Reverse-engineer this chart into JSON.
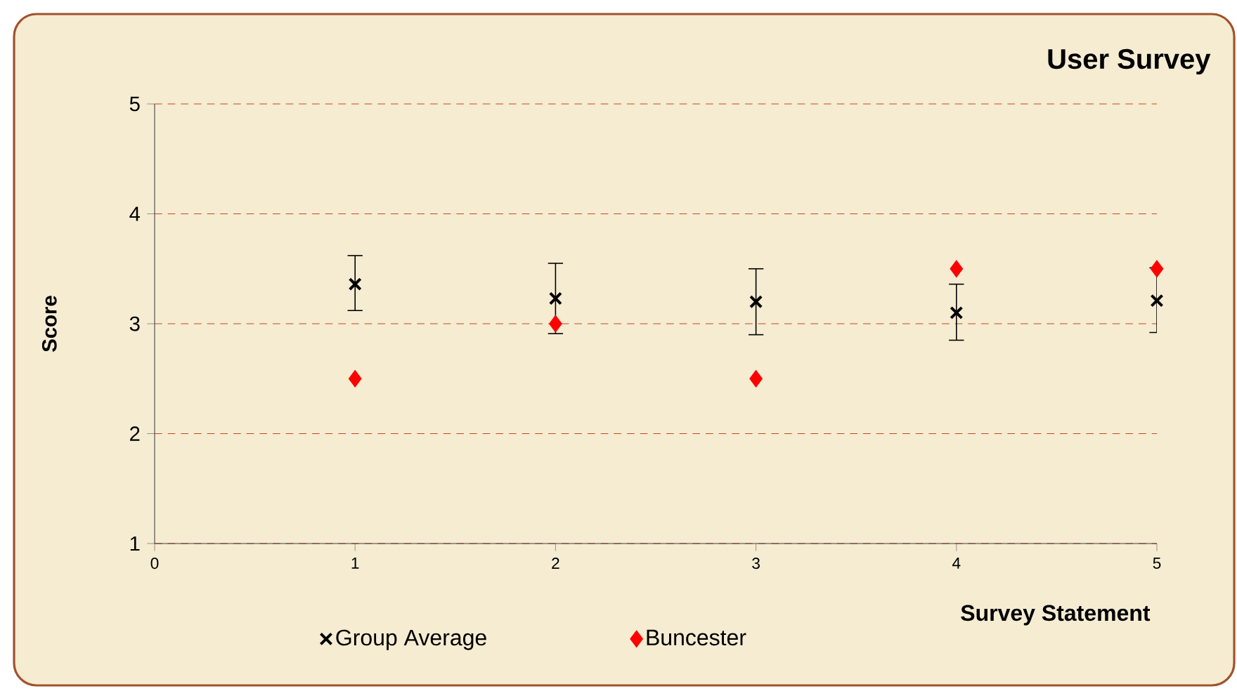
{
  "chart_data": {
    "type": "scatter",
    "title": "User Survey",
    "xlabel": "Survey Statement",
    "ylabel": "Score",
    "xlim": [
      0,
      5
    ],
    "xticks": [
      0,
      1,
      2,
      3,
      4,
      5
    ],
    "ylim": [
      1,
      5
    ],
    "yticks": [
      1,
      2,
      3,
      4,
      5
    ],
    "grid": "y",
    "legend": "bottom",
    "series": [
      {
        "name": "Group Average",
        "color": "#000000",
        "marker": "cross",
        "x": [
          1,
          2,
          3,
          4,
          5
        ],
        "values": [
          3.36,
          3.23,
          3.2,
          3.1,
          3.21
        ],
        "errors": [
          [
            3.12,
            3.62
          ],
          [
            2.91,
            3.55
          ],
          [
            2.9,
            3.5
          ],
          [
            2.85,
            3.36
          ],
          [
            2.92,
            3.51
          ]
        ]
      },
      {
        "name": "Buncester",
        "color": "#ff0000",
        "marker": "diamond",
        "x": [
          1,
          2,
          3,
          4,
          5
        ],
        "values": [
          2.5,
          3.0,
          2.5,
          3.5,
          3.5
        ]
      }
    ]
  }
}
